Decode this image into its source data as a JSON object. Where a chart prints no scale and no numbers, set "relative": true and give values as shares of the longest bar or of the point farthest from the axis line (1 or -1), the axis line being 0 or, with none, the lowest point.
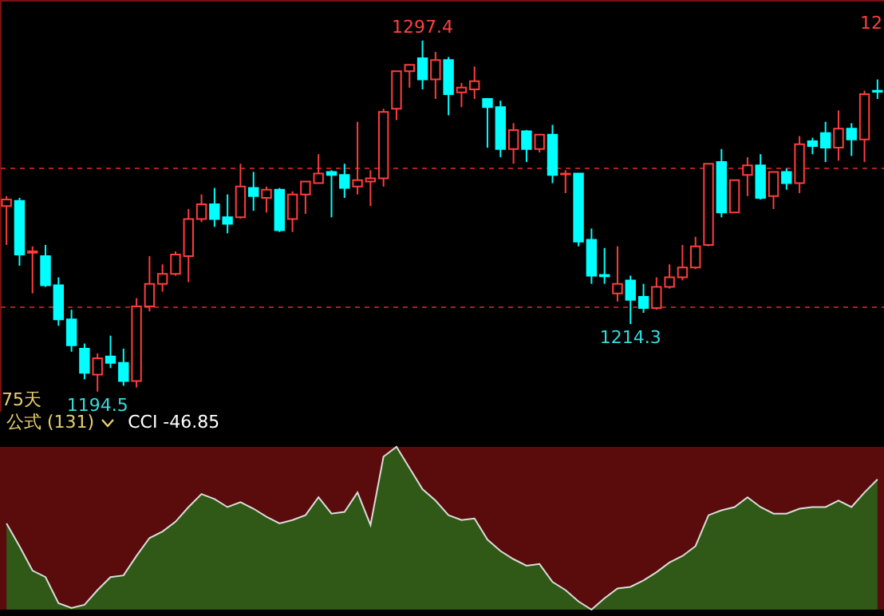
{
  "chart_data": [
    {
      "type": "candlestick",
      "categories": [
        null,
        null,
        null,
        null,
        null,
        null,
        null,
        null,
        null,
        null,
        null,
        null,
        null,
        null,
        null,
        null,
        null,
        null,
        null,
        null,
        null,
        null,
        null,
        null,
        null,
        null,
        null,
        null,
        null,
        null,
        null,
        null,
        null,
        null,
        null,
        null,
        null,
        null,
        null,
        null,
        null,
        null,
        null,
        null,
        null,
        null,
        null,
        null,
        null,
        null,
        null,
        null,
        null,
        null,
        null,
        null,
        null,
        null,
        null,
        null,
        null,
        null,
        null,
        null,
        null,
        null,
        null,
        null
      ],
      "ohlc": [
        [
          1248.9,
          1251.8,
          1237.5,
          1250.8
        ],
        [
          1250.4,
          1251.3,
          1231.4,
          1234.7
        ],
        [
          1235.2,
          1237.1,
          1223.3,
          1235.6
        ],
        [
          1234.2,
          1237.5,
          1225.2,
          1225.7
        ],
        [
          1225.7,
          1228.0,
          1213.8,
          1215.7
        ],
        [
          1215.7,
          1218.5,
          1206.2,
          1208.1
        ],
        [
          1207.1,
          1208.6,
          1198.1,
          1200.0
        ],
        [
          1199.5,
          1205.7,
          1194.5,
          1204.3
        ],
        [
          1204.8,
          1210.9,
          1201.4,
          1202.9
        ],
        [
          1202.9,
          1207.1,
          1196.2,
          1197.6
        ],
        [
          1197.6,
          1221.9,
          1195.7,
          1219.5
        ],
        [
          1219.5,
          1234.2,
          1218.0,
          1226.1
        ],
        [
          1226.1,
          1231.8,
          1223.8,
          1229.0
        ],
        [
          1229.0,
          1235.6,
          1228.5,
          1234.7
        ],
        [
          1234.2,
          1248.0,
          1226.6,
          1245.1
        ],
        [
          1245.1,
          1252.3,
          1244.2,
          1249.4
        ],
        [
          1249.4,
          1254.2,
          1242.8,
          1245.1
        ],
        [
          1245.6,
          1252.3,
          1240.9,
          1243.7
        ],
        [
          1245.6,
          1261.3,
          1245.2,
          1254.6
        ],
        [
          1254.2,
          1258.9,
          1247.5,
          1251.8
        ],
        [
          1251.3,
          1254.6,
          1247.0,
          1253.7
        ],
        [
          1253.7,
          1254.2,
          1241.3,
          1241.8
        ],
        [
          1245.1,
          1253.2,
          1241.3,
          1252.3
        ],
        [
          1252.3,
          1256.1,
          1246.6,
          1256.1
        ],
        [
          1255.6,
          1264.1,
          1255.6,
          1258.4
        ],
        [
          1258.9,
          1259.4,
          1245.6,
          1258.0
        ],
        [
          1258.0,
          1261.3,
          1251.3,
          1254.2
        ],
        [
          1254.6,
          1273.6,
          1252.3,
          1256.5
        ],
        [
          1256.1,
          1259.4,
          1248.9,
          1257.0
        ],
        [
          1257.0,
          1277.4,
          1254.6,
          1276.5
        ],
        [
          1277.4,
          1288.4,
          1274.1,
          1288.4
        ],
        [
          1288.4,
          1290.3,
          1283.6,
          1290.3
        ],
        [
          1292.2,
          1297.4,
          1283.1,
          1286.0
        ],
        [
          1286.0,
          1294.1,
          1280.3,
          1291.7
        ],
        [
          1291.7,
          1292.6,
          1275.5,
          1281.7
        ],
        [
          1282.2,
          1285.0,
          1277.9,
          1283.6
        ],
        [
          1283.1,
          1289.8,
          1280.3,
          1285.5
        ],
        [
          1280.3,
          1280.3,
          1266.0,
          1277.9
        ],
        [
          1277.9,
          1279.8,
          1263.2,
          1265.6
        ],
        [
          1265.6,
          1273.2,
          1261.3,
          1271.2
        ],
        [
          1270.8,
          1271.2,
          1261.8,
          1265.6
        ],
        [
          1265.6,
          1269.8,
          1264.6,
          1269.8
        ],
        [
          1269.8,
          1272.7,
          1255.6,
          1258.0
        ],
        [
          1258.2,
          1259.4,
          1252.7,
          1258.4
        ],
        [
          1258.4,
          1258.4,
          1237.1,
          1238.5
        ],
        [
          1239.0,
          1242.3,
          1226.1,
          1228.5
        ],
        [
          1228.7,
          1236.6,
          1226.1,
          1228.3
        ],
        [
          1223.3,
          1237.1,
          1220.9,
          1226.1
        ],
        [
          1227.1,
          1228.5,
          1214.3,
          1221.4
        ],
        [
          1222.3,
          1226.1,
          1217.6,
          1219.0
        ],
        [
          1219.0,
          1228.0,
          1218.5,
          1225.2
        ],
        [
          1225.2,
          1231.8,
          1224.7,
          1228.0
        ],
        [
          1228.0,
          1237.5,
          1227.1,
          1230.9
        ],
        [
          1230.9,
          1239.9,
          1230.4,
          1237.1
        ],
        [
          1237.5,
          1261.3,
          1237.1,
          1261.3
        ],
        [
          1261.8,
          1265.6,
          1245.6,
          1247.0
        ],
        [
          1247.0,
          1256.5,
          1247.0,
          1256.5
        ],
        [
          1258.0,
          1263.2,
          1251.8,
          1260.8
        ],
        [
          1260.8,
          1264.1,
          1250.8,
          1251.3
        ],
        [
          1251.8,
          1258.9,
          1248.0,
          1258.9
        ],
        [
          1258.9,
          1259.9,
          1253.7,
          1255.6
        ],
        [
          1255.6,
          1269.4,
          1252.7,
          1267.0
        ],
        [
          1267.9,
          1268.9,
          1264.1,
          1266.5
        ],
        [
          1270.3,
          1273.6,
          1261.8,
          1266.0
        ],
        [
          1266.0,
          1276.9,
          1262.2,
          1271.6
        ],
        [
          1271.6,
          1273.2,
          1263.6,
          1268.4
        ],
        [
          1268.4,
          1282.7,
          1261.8,
          1281.7
        ],
        [
          1282.7,
          1286.0,
          1280.3,
          1282.4
        ]
      ],
      "colors": [
        "#ff3c3c",
        "#00ffff",
        "#ff3c3c",
        "#00ffff",
        "#00ffff",
        "#00ffff",
        "#00ffff",
        "#ff3c3c",
        "#00ffff",
        "#00ffff",
        "#ff3c3c",
        "#ff3c3c",
        "#ff3c3c",
        "#ff3c3c",
        "#ff3c3c",
        "#ff3c3c",
        "#00ffff",
        "#00ffff",
        "#ff3c3c",
        "#00ffff",
        "#ff3c3c",
        "#00ffff",
        "#ff3c3c",
        "#ff3c3c",
        "#ff3c3c",
        "#00ffff",
        "#00ffff",
        "#ff3c3c",
        "#ff3c3c",
        "#ff3c3c",
        "#ff3c3c",
        "#ff3c3c",
        "#00ffff",
        "#ff3c3c",
        "#00ffff",
        "#ff3c3c",
        "#ff3c3c",
        "#00ffff",
        "#00ffff",
        "#ff3c3c",
        "#00ffff",
        "#ff3c3c",
        "#00ffff",
        "#ff3c3c",
        "#00ffff",
        "#00ffff",
        "#00ffff",
        "#ff3c3c",
        "#00ffff",
        "#00ffff",
        "#ff3c3c",
        "#ff3c3c",
        "#ff3c3c",
        "#ff3c3c",
        "#ff3c3c",
        "#00ffff",
        "#ff3c3c",
        "#ff3c3c",
        "#00ffff",
        "#ff3c3c",
        "#00ffff",
        "#ff3c3c",
        "#00ffff",
        "#00ffff",
        "#ff3c3c",
        "#00ffff",
        "#ff3c3c",
        "#00ffff"
      ],
      "ylim": [
        1188.6,
        1309.3
      ],
      "yticks": [
        {
          "value": 1219.5,
          "label": null
        },
        {
          "value": 1260.3,
          "label": null
        }
      ],
      "grid": "y",
      "annotations": [
        "75天",
        "12",
        {
          "text": "1297.4",
          "y": 1297.4
        },
        {
          "text": "1194.5",
          "y": 1194.5
        },
        {
          "text": "1214.3",
          "y": 1214.3
        }
      ]
    },
    {
      "type": "area",
      "title": "公式 (131)",
      "subtitle": "CCI -46.85",
      "relative": true,
      "categories": [
        null,
        null,
        null,
        null,
        null,
        null,
        null,
        null,
        null,
        null,
        null,
        null,
        null,
        null,
        null,
        null,
        null,
        null,
        null,
        null,
        null,
        null,
        null,
        null,
        null,
        null,
        null,
        null,
        null,
        null,
        null,
        null,
        null,
        null,
        null,
        null,
        null,
        null,
        null,
        null,
        null,
        null,
        null,
        null,
        null,
        null,
        null,
        null,
        null,
        null,
        null,
        null,
        null,
        null,
        null,
        null,
        null,
        null,
        null,
        null,
        null,
        null,
        null,
        null,
        null,
        null,
        null,
        null
      ],
      "series": [
        {
          "color": "#1e7a1e",
          "values": [
            0.53,
            0.39,
            0.24,
            0.2,
            0.04,
            0.01,
            0.03,
            0.12,
            0.2,
            0.21,
            0.33,
            0.44,
            0.48,
            0.54,
            0.63,
            0.71,
            0.68,
            0.63,
            0.66,
            0.62,
            0.57,
            0.53,
            0.55,
            0.58,
            0.69,
            0.59,
            0.6,
            0.72,
            0.52,
            0.94,
            1,
            0.87,
            0.74,
            0.67,
            0.58,
            0.55,
            0.56,
            0.43,
            0.36,
            0.31,
            0.27,
            0.28,
            0.17,
            0.12,
            0.05,
            0,
            0.07,
            0.13,
            0.14,
            0.18,
            0.23,
            0.29,
            0.33,
            0.39,
            0.58,
            0.61,
            0.63,
            0.69,
            0.63,
            0.59,
            0.59,
            0.62,
            0.63,
            0.63,
            0.67,
            0.63,
            0.72,
            0.8
          ]
        }
      ]
    }
  ]
}
